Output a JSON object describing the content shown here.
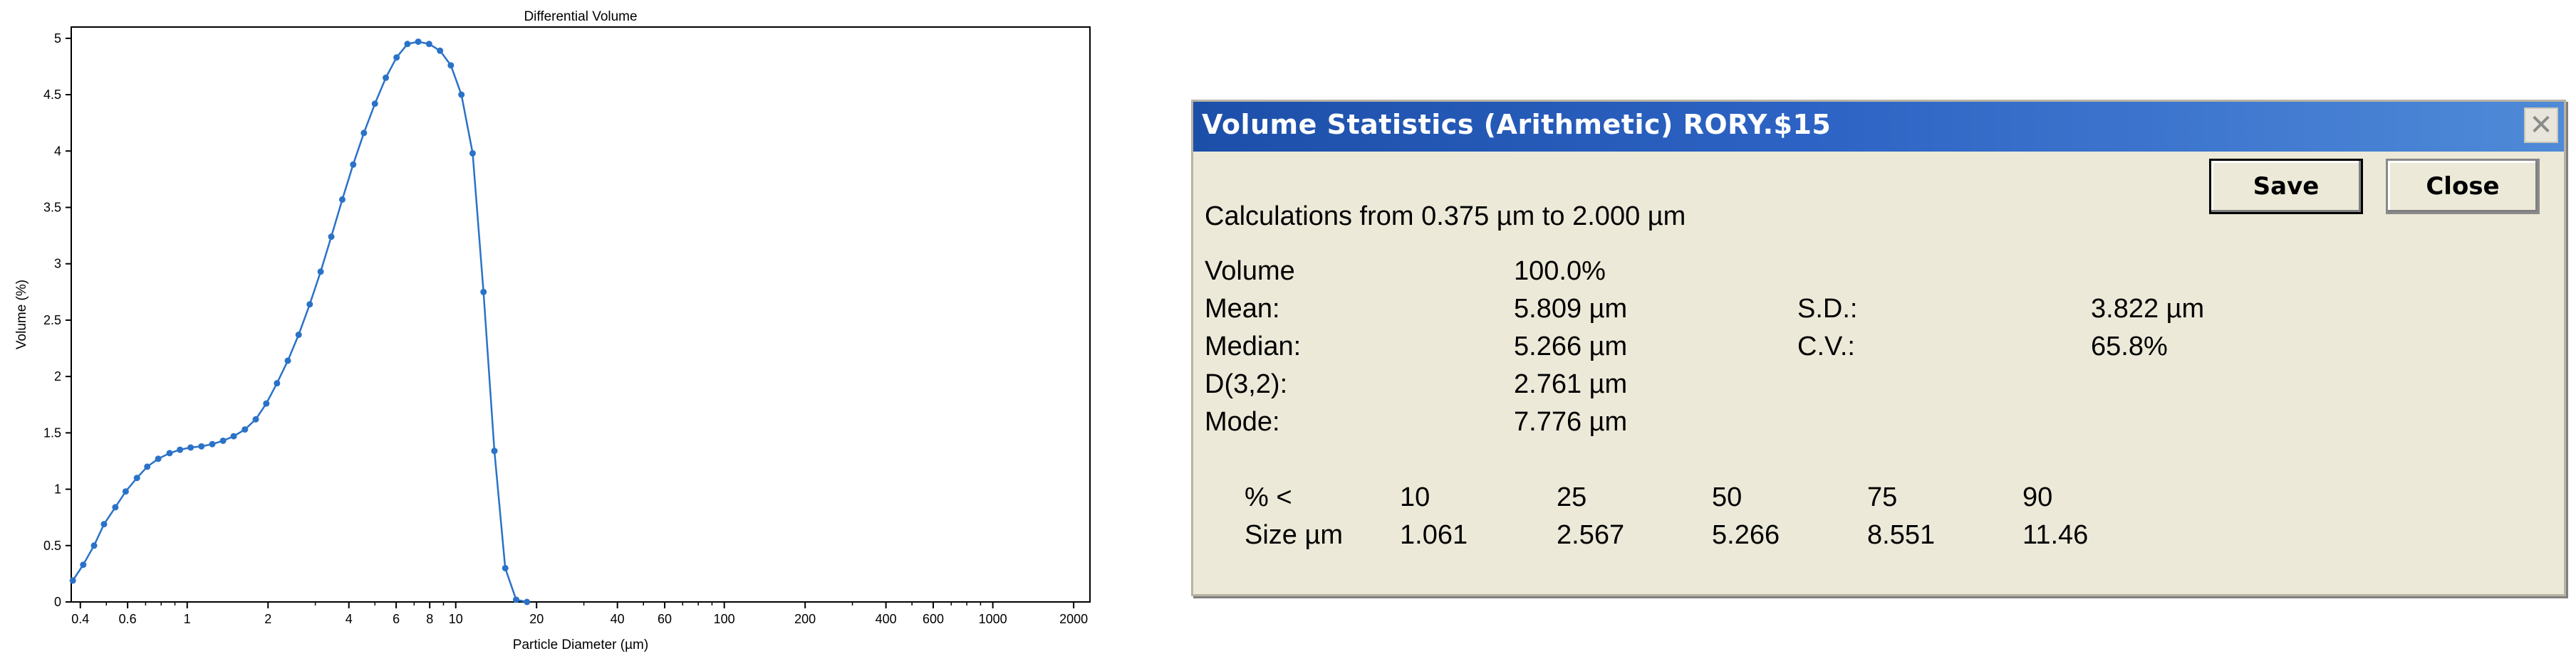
{
  "chart_data": {
    "type": "line",
    "title": "Differential Volume",
    "xlabel": "Particle Diameter (µm)",
    "ylabel": "Volume (%)",
    "xscale": "log",
    "xlim": [
      0.37,
      2300
    ],
    "ylim": [
      0,
      5.1
    ],
    "x_ticks": [
      0.4,
      0.6,
      1,
      2,
      4,
      6,
      8,
      10,
      20,
      40,
      60,
      100,
      200,
      400,
      600,
      1000,
      2000
    ],
    "x_tick_labels": [
      "0.4",
      "0.6",
      "1",
      "2",
      "4",
      "6",
      "8",
      "10",
      "20",
      "40",
      "60",
      "100",
      "200",
      "400",
      "600",
      "1000",
      "2000"
    ],
    "y_ticks": [
      0,
      0.5,
      1,
      1.5,
      2,
      2.5,
      3,
      3.5,
      4,
      4.5,
      5
    ],
    "y_tick_labels": [
      "0",
      "0.5",
      "1",
      "1.5",
      "2",
      "2.5",
      "3",
      "3.5",
      "4",
      "4.5",
      "5"
    ],
    "line_color": "#2a72c8",
    "grid": false,
    "series": [
      {
        "x": [
          0.375,
          0.41,
          0.45,
          0.49,
          0.54,
          0.59,
          0.65,
          0.71,
          0.78,
          0.86,
          0.94,
          1.03,
          1.13,
          1.24,
          1.36,
          1.49,
          1.64,
          1.8,
          1.97,
          2.16,
          2.37,
          2.6,
          2.86,
          3.14,
          3.44,
          3.78,
          4.15,
          4.55,
          5.0,
          5.49,
          6.02,
          6.61,
          7.25,
          7.96,
          8.74,
          9.59,
          10.5,
          11.56,
          12.69,
          13.93,
          15.29,
          16.78,
          18.42
        ],
        "y": [
          0.19,
          0.33,
          0.5,
          0.69,
          0.84,
          0.98,
          1.1,
          1.2,
          1.27,
          1.32,
          1.35,
          1.37,
          1.38,
          1.4,
          1.43,
          1.47,
          1.53,
          1.62,
          1.76,
          1.94,
          2.14,
          2.37,
          2.64,
          2.93,
          3.24,
          3.57,
          3.88,
          4.16,
          4.42,
          4.65,
          4.83,
          4.95,
          4.97,
          4.95,
          4.89,
          4.76,
          4.5,
          3.98,
          2.75,
          1.34,
          0.3,
          0.02,
          0.0
        ]
      }
    ]
  },
  "dialog": {
    "title": "Volume Statistics (Arithmetic)  RORY.$15",
    "save_label": "Save",
    "close_label": "Close",
    "calc_range": "Calculations from 0.375 µm to 2.000 µm",
    "stats": {
      "volume_label": "Volume",
      "volume_value": "100.0%",
      "mean_label": "Mean:",
      "mean_value": "5.809 µm",
      "median_label": "Median:",
      "median_value": "5.266 µm",
      "d32_label": "D(3,2):",
      "d32_value": "2.761 µm",
      "mode_label": "Mode:",
      "mode_value": "7.776 µm",
      "sd_label": "S.D.:",
      "sd_value": "3.822 µm",
      "cv_label": "C.V.:",
      "cv_value": "65.8%"
    },
    "percentiles": {
      "row1_label": "% <",
      "row2_label": "Size µm",
      "pct": [
        "10",
        "25",
        "50",
        "75",
        "90"
      ],
      "size": [
        "1.061",
        "2.567",
        "5.266",
        "8.551",
        "11.46"
      ]
    },
    "colors": {
      "titlebar": "#2d63c4",
      "body": "#ece9d8"
    }
  }
}
